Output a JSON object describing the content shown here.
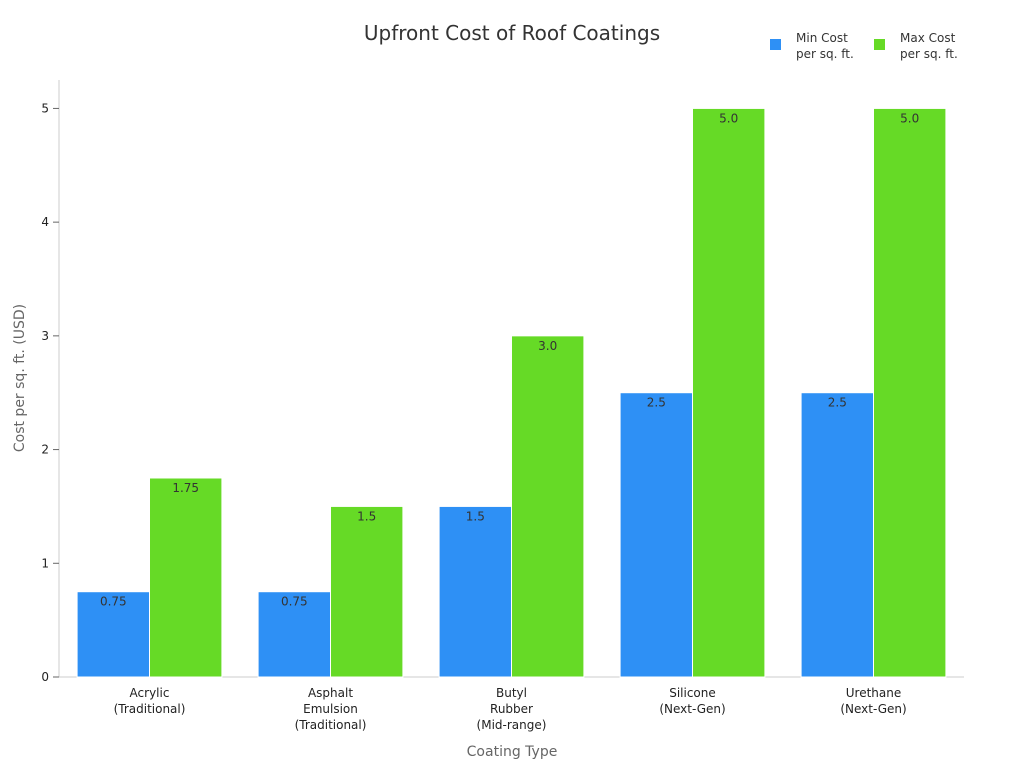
{
  "chart_data": {
    "type": "bar",
    "title": "Upfront Cost of Roof Coatings",
    "xlabel": "Coating Type",
    "ylabel": "Cost per sq. ft. (USD)",
    "categories": [
      [
        "Acrylic",
        "(Traditional)"
      ],
      [
        "Asphalt",
        "Emulsion",
        "(Traditional)"
      ],
      [
        "Butyl",
        "Rubber",
        "(Mid-range)"
      ],
      [
        "Silicone",
        "(Next-Gen)"
      ],
      [
        "Urethane",
        "(Next-Gen)"
      ]
    ],
    "series": [
      {
        "name": [
          "Min Cost",
          "per sq. ft."
        ],
        "color": "#2e90f5",
        "values": [
          0.75,
          0.75,
          1.5,
          2.5,
          2.5
        ],
        "labels": [
          "0.75",
          "0.75",
          "1.5",
          "2.5",
          "2.5"
        ]
      },
      {
        "name": [
          "Max Cost",
          "per sq. ft."
        ],
        "color": "#66da26",
        "values": [
          1.75,
          1.5,
          3.0,
          5.0,
          5.0
        ],
        "labels": [
          "1.75",
          "1.5",
          "3.0",
          "5.0",
          "5.0"
        ]
      }
    ],
    "ylim": [
      0,
      5.25
    ],
    "yticks": [
      0,
      1,
      2,
      3,
      4,
      5
    ],
    "grid": false,
    "legend_position": "top-right"
  }
}
